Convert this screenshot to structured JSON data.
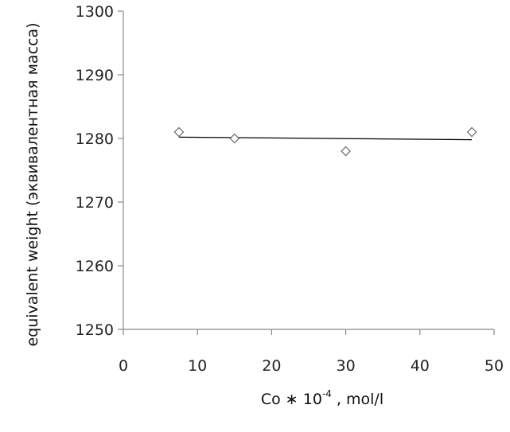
{
  "chart_data": {
    "type": "scatter",
    "title": "",
    "xlabel": {
      "prefix": "Co ∗ 10",
      "superscript": "-4",
      "suffix": " , mol/l"
    },
    "ylabel": "equivalent weight (эквивалентная масса)",
    "xlim": [
      0,
      50
    ],
    "ylim": [
      1250,
      1300
    ],
    "x_ticks": [
      "0",
      "10",
      "20",
      "30",
      "40",
      "50"
    ],
    "y_ticks": [
      "1250",
      "1260",
      "1270",
      "1280",
      "1290",
      "1300"
    ],
    "marker": "diamond",
    "series": [
      {
        "x": [
          7.5,
          15,
          30,
          47
        ],
        "y": [
          1281,
          1280,
          1278,
          1281
        ]
      }
    ],
    "trendline": {
      "type": "linear",
      "x": [
        7.5,
        47
      ],
      "y": [
        1280.2,
        1279.8
      ]
    },
    "grid": false,
    "colors": {
      "marker": "#666666",
      "trendline": "#000000",
      "axis": "#888888"
    }
  }
}
